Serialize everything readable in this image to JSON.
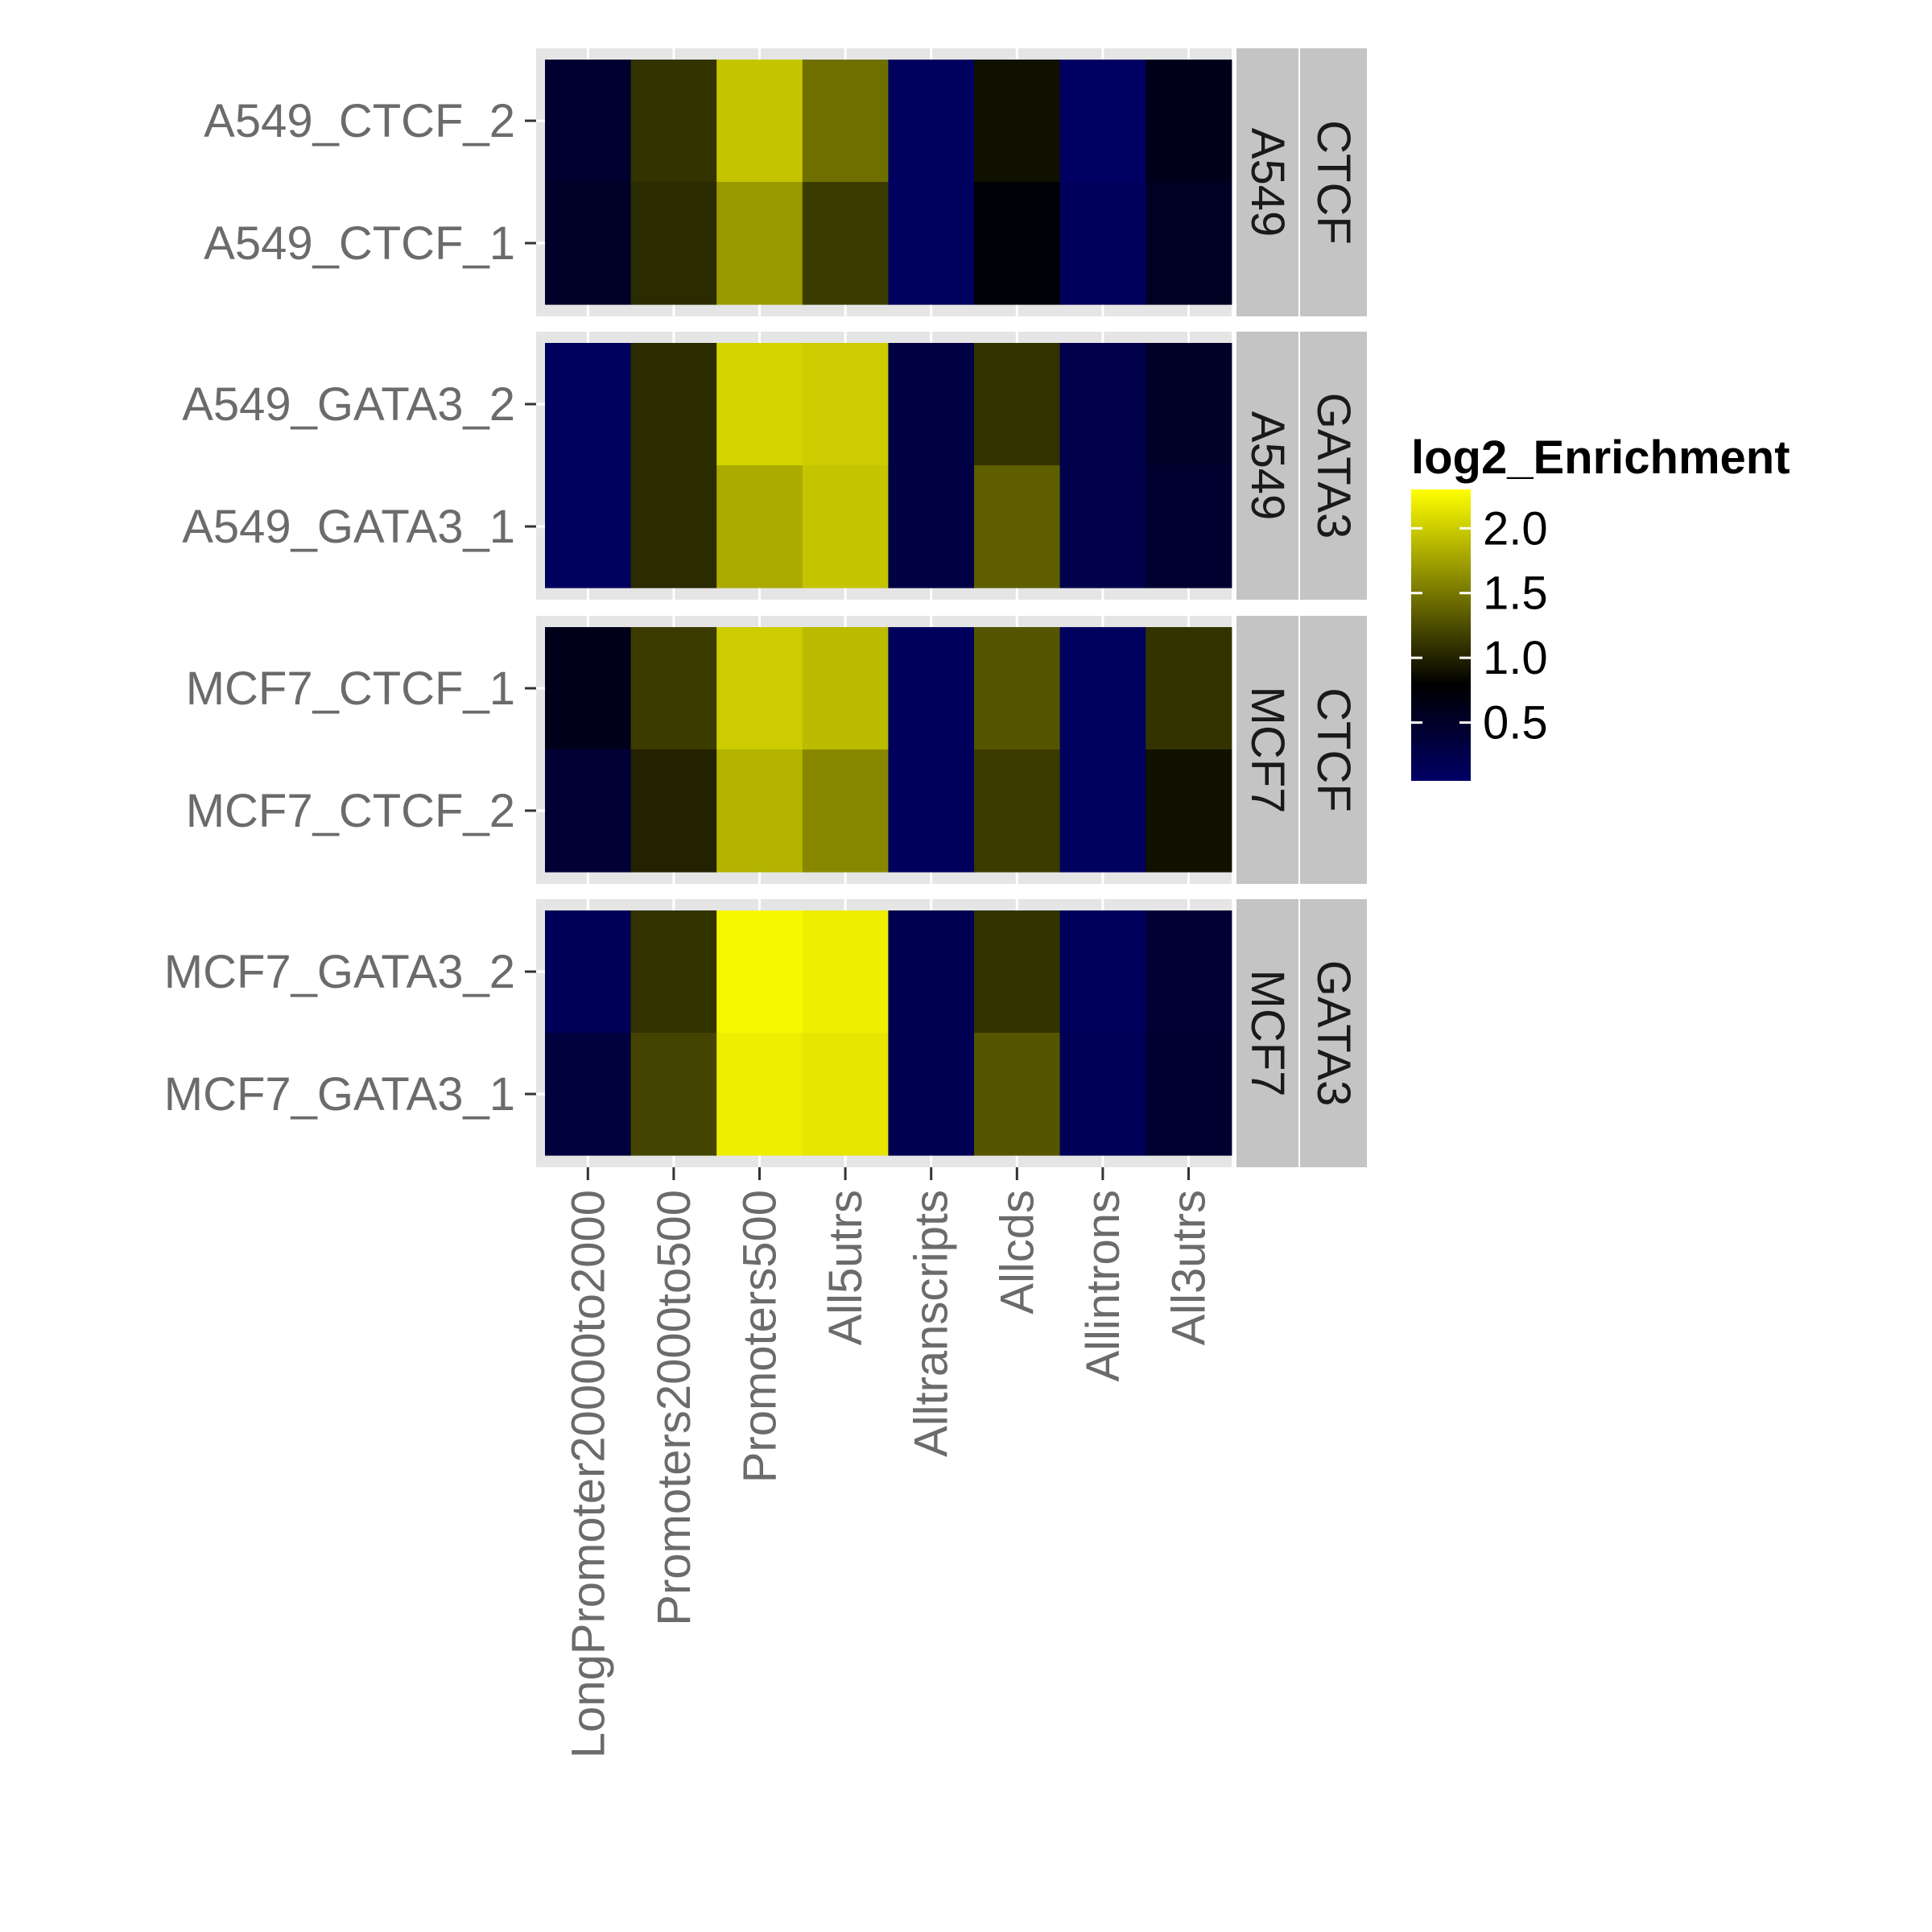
{
  "chart_data": {
    "type": "heatmap",
    "fill_label": "log2_Enrichment",
    "x_categories": [
      "LongPromoter20000to2000",
      "Promoters2000to500",
      "Promoters500",
      "All5utrs",
      "Alltranscripts",
      "Allcds",
      "Allintrons",
      "All3utrs"
    ],
    "panels": [
      {
        "strip_outer": "CTCF",
        "strip_inner": "A549",
        "rows": [
          {
            "label": "A549_CTCF_2",
            "values": [
              0.45,
              1.1,
              1.95,
              1.45,
              0.1,
              0.9,
              0.08,
              0.6
            ]
          },
          {
            "label": "A549_CTCF_1",
            "values": [
              0.5,
              1.05,
              1.7,
              1.15,
              0.1,
              0.75,
              0.12,
              0.55
            ]
          }
        ]
      },
      {
        "strip_outer": "GATA3",
        "strip_inner": "A549",
        "rows": [
          {
            "label": "A549_GATA3_2",
            "values": [
              0.1,
              1.05,
              2.05,
              2.0,
              0.3,
              1.1,
              0.25,
              0.5
            ]
          },
          {
            "label": "A549_GATA3_1",
            "values": [
              0.1,
              1.05,
              1.8,
              1.95,
              0.3,
              1.35,
              0.25,
              0.45
            ]
          }
        ]
      },
      {
        "strip_outer": "CTCF",
        "strip_inner": "MCF7",
        "rows": [
          {
            "label": "MCF7_CTCF_1",
            "values": [
              0.6,
              1.15,
              2.0,
              1.9,
              0.12,
              1.3,
              0.1,
              1.1
            ]
          },
          {
            "label": "MCF7_CTCF_2",
            "values": [
              0.4,
              1.0,
              1.85,
              1.6,
              0.12,
              1.15,
              0.1,
              0.9
            ]
          }
        ]
      },
      {
        "strip_outer": "GATA3",
        "strip_inner": "MCF7",
        "rows": [
          {
            "label": "MCF7_GATA3_2",
            "values": [
              0.15,
              1.1,
              2.25,
              2.2,
              0.2,
              1.1,
              0.12,
              0.4
            ]
          },
          {
            "label": "MCF7_GATA3_1",
            "values": [
              0.35,
              1.2,
              2.2,
              2.15,
              0.2,
              1.3,
              0.15,
              0.45
            ]
          }
        ]
      }
    ],
    "color_scale": {
      "low": "#000066",
      "mid": "#000000",
      "high": "#ffff00",
      "midpoint": 0.8,
      "min": 0.05,
      "max": 2.3
    },
    "legend": {
      "title": "log2_Enrichment",
      "ticks": [
        0.5,
        1.0,
        1.5,
        2.0
      ],
      "tick_labels": [
        "0.5",
        "1.0",
        "1.5",
        "2.0"
      ],
      "placement": "right"
    },
    "panel_background": "#e5e5e5",
    "strip_background": "#c4c4c4",
    "grid": true
  }
}
